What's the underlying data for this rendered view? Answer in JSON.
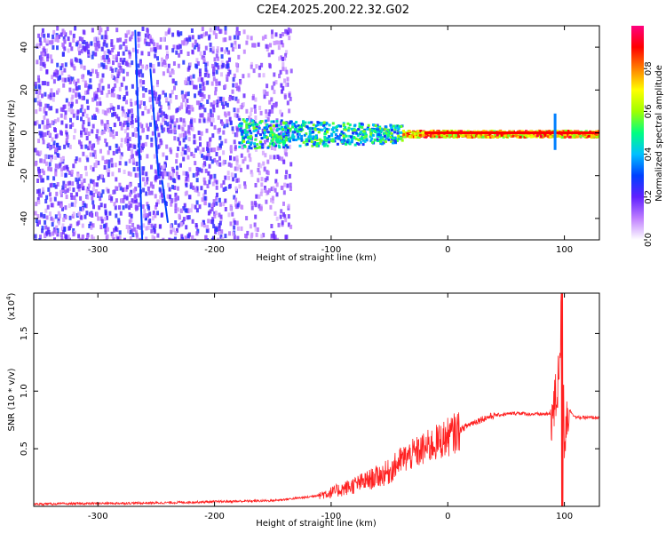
{
  "title": "C2E4.2025.200.22.32.G02",
  "chart_data": [
    {
      "type": "heatmap",
      "xlabel": "Height of straight line (km)",
      "ylabel": "Frequency (Hz)",
      "xlim": [
        -355,
        130
      ],
      "ylim": [
        -50,
        50
      ],
      "xticks": [
        -300,
        -200,
        -100,
        0,
        100
      ],
      "yticks": [
        40,
        20,
        0,
        -20,
        -40
      ],
      "colorbar": {
        "label": "Normalized spectral amplitude",
        "range": [
          0,
          1
        ],
        "ticks": [
          "0.0",
          "0.2",
          "0.4",
          "0.6",
          "0.8"
        ],
        "colors": [
          "#ffffff",
          "#c080ff",
          "#6020ff",
          "#0040ff",
          "#00c0ff",
          "#00ff80",
          "#a0ff00",
          "#ffff00",
          "#ff8000",
          "#ff0000",
          "#ff0080"
        ]
      },
      "noise_region_x": [
        -355,
        -135
      ],
      "carrier_band_start_x": -180,
      "carrier_freq_hz": 0,
      "spike_x": 92
    },
    {
      "type": "line",
      "xlabel": "Height of straight line (km)",
      "ylabel": "SNR (10 * v/v)",
      "y_multiplier_label": "(x10",
      "y_multiplier_exp": "4",
      "xlim": [
        -355,
        130
      ],
      "ylim": [
        0,
        1.85
      ],
      "xticks": [
        -300,
        -200,
        -100,
        0,
        100
      ],
      "yticks": [
        "0.5",
        "1.0",
        "1.5"
      ],
      "ytick_values": [
        0.5,
        1.0,
        1.5
      ],
      "color": "#ff2020",
      "series": [
        {
          "x": [
            -355,
            -250,
            -150,
            -120,
            -100,
            -90,
            -70,
            -50,
            -40,
            -30,
            -20,
            -10,
            0,
            10,
            20,
            30,
            40,
            50,
            60,
            70,
            80,
            90,
            94,
            98,
            100,
            103,
            110,
            130
          ],
          "y": [
            0.02,
            0.03,
            0.05,
            0.08,
            0.12,
            0.15,
            0.22,
            0.3,
            0.4,
            0.45,
            0.5,
            0.55,
            0.6,
            0.66,
            0.72,
            0.76,
            0.79,
            0.8,
            0.81,
            0.8,
            0.8,
            0.8,
            1.0,
            1.75,
            0.6,
            0.85,
            0.77,
            0.77
          ]
        }
      ]
    }
  ]
}
